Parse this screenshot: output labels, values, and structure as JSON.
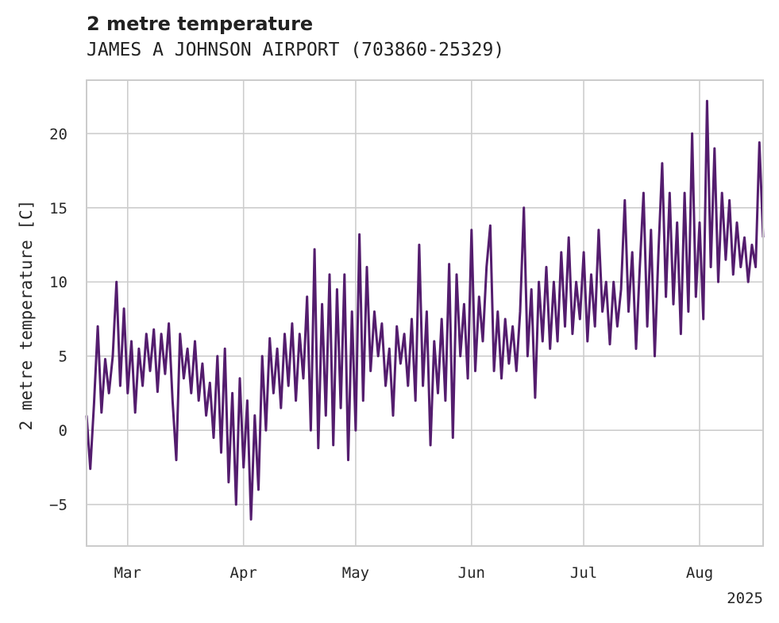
{
  "chart_data": {
    "type": "line",
    "title": "2 metre temperature",
    "subtitle": "JAMES A JOHNSON AIRPORT (703860-25329)",
    "xlabel": "",
    "ylabel": "2 metre temperature [C]",
    "x_axis_year_label": "2025",
    "x_range": [
      "2025-02-18",
      "2025-08-18"
    ],
    "ylim": [
      -7.8,
      23.6
    ],
    "grid": true,
    "y_ticks": [
      {
        "value": -5,
        "label": "−5"
      },
      {
        "value": 0,
        "label": "0"
      },
      {
        "value": 5,
        "label": "5"
      },
      {
        "value": 10,
        "label": "10"
      },
      {
        "value": 15,
        "label": "15"
      },
      {
        "value": 20,
        "label": "20"
      }
    ],
    "x_ticks": [
      {
        "date": "2025-03-01",
        "label": "Mar"
      },
      {
        "date": "2025-04-01",
        "label": "Apr"
      },
      {
        "date": "2025-05-01",
        "label": "May"
      },
      {
        "date": "2025-06-01",
        "label": "Jun"
      },
      {
        "date": "2025-07-01",
        "label": "Jul"
      },
      {
        "date": "2025-08-01",
        "label": "Aug"
      }
    ],
    "series": [
      {
        "name": "",
        "color": "#541d6e",
        "points": [
          [
            "2025-02-18",
            1.0
          ],
          [
            "2025-02-19",
            -2.6
          ],
          [
            "2025-02-20",
            1.8
          ],
          [
            "2025-02-21",
            7.0
          ],
          [
            "2025-02-22",
            1.2
          ],
          [
            "2025-02-23",
            4.8
          ],
          [
            "2025-02-24",
            2.5
          ],
          [
            "2025-02-25",
            5.0
          ],
          [
            "2025-02-26",
            10.0
          ],
          [
            "2025-02-27",
            3.0
          ],
          [
            "2025-02-28",
            8.2
          ],
          [
            "2025-03-01",
            2.5
          ],
          [
            "2025-03-02",
            6.0
          ],
          [
            "2025-03-03",
            1.2
          ],
          [
            "2025-03-04",
            5.5
          ],
          [
            "2025-03-05",
            3.0
          ],
          [
            "2025-03-06",
            6.5
          ],
          [
            "2025-03-07",
            4.0
          ],
          [
            "2025-03-08",
            6.8
          ],
          [
            "2025-03-09",
            2.6
          ],
          [
            "2025-03-10",
            6.5
          ],
          [
            "2025-03-11",
            3.8
          ],
          [
            "2025-03-12",
            7.2
          ],
          [
            "2025-03-13",
            2.0
          ],
          [
            "2025-03-14",
            -2.0
          ],
          [
            "2025-03-15",
            6.5
          ],
          [
            "2025-03-16",
            3.5
          ],
          [
            "2025-03-17",
            5.5
          ],
          [
            "2025-03-18",
            2.5
          ],
          [
            "2025-03-19",
            6.0
          ],
          [
            "2025-03-20",
            2.0
          ],
          [
            "2025-03-21",
            4.5
          ],
          [
            "2025-03-22",
            1.0
          ],
          [
            "2025-03-23",
            3.2
          ],
          [
            "2025-03-24",
            -0.5
          ],
          [
            "2025-03-25",
            5.0
          ],
          [
            "2025-03-26",
            -1.5
          ],
          [
            "2025-03-27",
            5.5
          ],
          [
            "2025-03-28",
            -3.5
          ],
          [
            "2025-03-29",
            2.5
          ],
          [
            "2025-03-30",
            -5.0
          ],
          [
            "2025-03-31",
            3.5
          ],
          [
            "2025-04-01",
            -2.5
          ],
          [
            "2025-04-02",
            2.0
          ],
          [
            "2025-04-03",
            -6.0
          ],
          [
            "2025-04-04",
            1.0
          ],
          [
            "2025-04-05",
            -4.0
          ],
          [
            "2025-04-06",
            5.0
          ],
          [
            "2025-04-07",
            0.0
          ],
          [
            "2025-04-08",
            6.2
          ],
          [
            "2025-04-09",
            2.5
          ],
          [
            "2025-04-10",
            5.5
          ],
          [
            "2025-04-11",
            1.5
          ],
          [
            "2025-04-12",
            6.5
          ],
          [
            "2025-04-13",
            3.0
          ],
          [
            "2025-04-14",
            7.2
          ],
          [
            "2025-04-15",
            2.0
          ],
          [
            "2025-04-16",
            6.5
          ],
          [
            "2025-04-17",
            3.5
          ],
          [
            "2025-04-18",
            9.0
          ],
          [
            "2025-04-19",
            0.0
          ],
          [
            "2025-04-20",
            12.2
          ],
          [
            "2025-04-21",
            -1.2
          ],
          [
            "2025-04-22",
            8.5
          ],
          [
            "2025-04-23",
            1.0
          ],
          [
            "2025-04-24",
            10.5
          ],
          [
            "2025-04-25",
            -1.0
          ],
          [
            "2025-04-26",
            9.5
          ],
          [
            "2025-04-27",
            1.5
          ],
          [
            "2025-04-28",
            10.5
          ],
          [
            "2025-04-29",
            -2.0
          ],
          [
            "2025-04-30",
            8.0
          ],
          [
            "2025-05-01",
            0.0
          ],
          [
            "2025-05-02",
            13.2
          ],
          [
            "2025-05-03",
            2.0
          ],
          [
            "2025-05-04",
            11.0
          ],
          [
            "2025-05-05",
            4.0
          ],
          [
            "2025-05-06",
            8.0
          ],
          [
            "2025-05-07",
            5.0
          ],
          [
            "2025-05-08",
            7.2
          ],
          [
            "2025-05-09",
            3.0
          ],
          [
            "2025-05-10",
            5.5
          ],
          [
            "2025-05-11",
            1.0
          ],
          [
            "2025-05-12",
            7.0
          ],
          [
            "2025-05-13",
            4.5
          ],
          [
            "2025-05-14",
            6.5
          ],
          [
            "2025-05-15",
            3.0
          ],
          [
            "2025-05-16",
            7.5
          ],
          [
            "2025-05-17",
            2.0
          ],
          [
            "2025-05-18",
            12.5
          ],
          [
            "2025-05-19",
            3.0
          ],
          [
            "2025-05-20",
            8.0
          ],
          [
            "2025-05-21",
            -1.0
          ],
          [
            "2025-05-22",
            6.0
          ],
          [
            "2025-05-23",
            2.5
          ],
          [
            "2025-05-24",
            7.5
          ],
          [
            "2025-05-25",
            2.0
          ],
          [
            "2025-05-26",
            11.2
          ],
          [
            "2025-05-27",
            -0.5
          ],
          [
            "2025-05-28",
            10.5
          ],
          [
            "2025-05-29",
            5.0
          ],
          [
            "2025-05-30",
            8.5
          ],
          [
            "2025-05-31",
            3.5
          ],
          [
            "2025-06-01",
            13.5
          ],
          [
            "2025-06-02",
            4.0
          ],
          [
            "2025-06-03",
            9.0
          ],
          [
            "2025-06-04",
            6.0
          ],
          [
            "2025-06-05",
            11.0
          ],
          [
            "2025-06-06",
            13.8
          ],
          [
            "2025-06-07",
            4.0
          ],
          [
            "2025-06-08",
            8.0
          ],
          [
            "2025-06-09",
            3.5
          ],
          [
            "2025-06-10",
            7.5
          ],
          [
            "2025-06-11",
            4.5
          ],
          [
            "2025-06-12",
            7.0
          ],
          [
            "2025-06-13",
            4.0
          ],
          [
            "2025-06-14",
            8.0
          ],
          [
            "2025-06-15",
            15.0
          ],
          [
            "2025-06-16",
            5.0
          ],
          [
            "2025-06-17",
            9.5
          ],
          [
            "2025-06-18",
            2.2
          ],
          [
            "2025-06-19",
            10.0
          ],
          [
            "2025-06-20",
            6.0
          ],
          [
            "2025-06-21",
            11.0
          ],
          [
            "2025-06-22",
            5.5
          ],
          [
            "2025-06-23",
            10.0
          ],
          [
            "2025-06-24",
            6.0
          ],
          [
            "2025-06-25",
            12.0
          ],
          [
            "2025-06-26",
            7.0
          ],
          [
            "2025-06-27",
            13.0
          ],
          [
            "2025-06-28",
            6.5
          ],
          [
            "2025-06-29",
            10.0
          ],
          [
            "2025-06-30",
            7.5
          ],
          [
            "2025-07-01",
            12.0
          ],
          [
            "2025-07-02",
            6.0
          ],
          [
            "2025-07-03",
            10.5
          ],
          [
            "2025-07-04",
            7.0
          ],
          [
            "2025-07-05",
            13.5
          ],
          [
            "2025-07-06",
            8.0
          ],
          [
            "2025-07-07",
            10.0
          ],
          [
            "2025-07-08",
            5.8
          ],
          [
            "2025-07-09",
            10.0
          ],
          [
            "2025-07-10",
            7.0
          ],
          [
            "2025-07-11",
            9.5
          ],
          [
            "2025-07-12",
            15.5
          ],
          [
            "2025-07-13",
            8.0
          ],
          [
            "2025-07-14",
            12.0
          ],
          [
            "2025-07-15",
            5.5
          ],
          [
            "2025-07-16",
            11.0
          ],
          [
            "2025-07-17",
            16.0
          ],
          [
            "2025-07-18",
            7.0
          ],
          [
            "2025-07-19",
            13.5
          ],
          [
            "2025-07-20",
            5.0
          ],
          [
            "2025-07-21",
            12.0
          ],
          [
            "2025-07-22",
            18.0
          ],
          [
            "2025-07-23",
            9.0
          ],
          [
            "2025-07-24",
            16.0
          ],
          [
            "2025-07-25",
            8.5
          ],
          [
            "2025-07-26",
            14.0
          ],
          [
            "2025-07-27",
            6.5
          ],
          [
            "2025-07-28",
            16.0
          ],
          [
            "2025-07-29",
            8.0
          ],
          [
            "2025-07-30",
            20.0
          ],
          [
            "2025-07-31",
            9.0
          ],
          [
            "2025-08-01",
            14.0
          ],
          [
            "2025-08-02",
            7.5
          ],
          [
            "2025-08-03",
            22.2
          ],
          [
            "2025-08-04",
            11.0
          ],
          [
            "2025-08-05",
            19.0
          ],
          [
            "2025-08-06",
            10.0
          ],
          [
            "2025-08-07",
            16.0
          ],
          [
            "2025-08-08",
            11.5
          ],
          [
            "2025-08-09",
            15.5
          ],
          [
            "2025-08-10",
            10.5
          ],
          [
            "2025-08-11",
            14.0
          ],
          [
            "2025-08-12",
            11.0
          ],
          [
            "2025-08-13",
            13.0
          ],
          [
            "2025-08-14",
            10.0
          ],
          [
            "2025-08-15",
            12.5
          ],
          [
            "2025-08-16",
            11.0
          ],
          [
            "2025-08-17",
            19.4
          ],
          [
            "2025-08-18",
            13.0
          ]
        ]
      }
    ]
  }
}
